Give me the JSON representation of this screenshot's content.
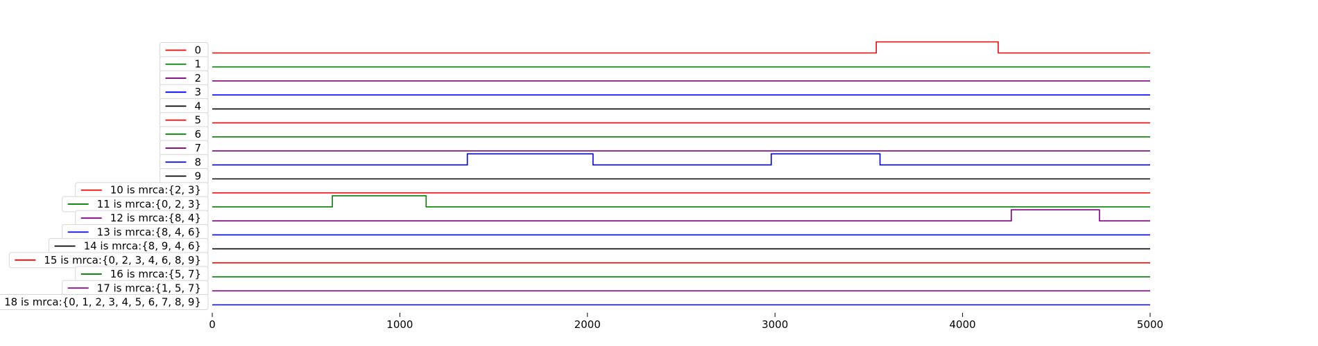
{
  "chart_data": {
    "type": "line",
    "x_ticks": [
      0,
      1000,
      2000,
      3000,
      4000,
      5000
    ],
    "xlim": [
      0,
      5000
    ],
    "grid": false,
    "legend_placement": "left of each track",
    "series": [
      {
        "name": "0",
        "color": "#ff0000",
        "steps": [
          [
            0,
            0
          ],
          [
            3540,
            1
          ],
          [
            4190,
            0
          ]
        ]
      },
      {
        "name": "1",
        "color": "#008000",
        "steps": [
          [
            0,
            0
          ]
        ]
      },
      {
        "name": "2",
        "color": "#800080",
        "steps": [
          [
            0,
            0
          ]
        ]
      },
      {
        "name": "3",
        "color": "#0000ff",
        "steps": [
          [
            0,
            0
          ]
        ]
      },
      {
        "name": "4",
        "color": "#000000",
        "steps": [
          [
            0,
            0
          ]
        ]
      },
      {
        "name": "5",
        "color": "#ff0000",
        "steps": [
          [
            0,
            0
          ]
        ]
      },
      {
        "name": "6",
        "color": "#008000",
        "steps": [
          [
            0,
            0
          ]
        ]
      },
      {
        "name": "7",
        "color": "#800080",
        "steps": [
          [
            0,
            0
          ]
        ]
      },
      {
        "name": "8",
        "color": "#0000ff",
        "steps": [
          [
            0,
            0
          ],
          [
            1360,
            1
          ],
          [
            2030,
            0
          ],
          [
            2980,
            1
          ],
          [
            3560,
            0
          ]
        ]
      },
      {
        "name": "9",
        "color": "#000000",
        "steps": [
          [
            0,
            0
          ]
        ]
      },
      {
        "name": "10 is mrca:{2, 3}",
        "color": "#ff0000",
        "steps": [
          [
            0,
            0
          ]
        ]
      },
      {
        "name": "11 is mrca:{0, 2, 3}",
        "color": "#008000",
        "steps": [
          [
            0,
            0
          ],
          [
            640,
            1
          ],
          [
            1140,
            0
          ]
        ]
      },
      {
        "name": "12 is mrca:{8, 4}",
        "color": "#800080",
        "steps": [
          [
            0,
            0
          ],
          [
            4260,
            1
          ],
          [
            4730,
            0
          ]
        ]
      },
      {
        "name": "13 is mrca:{8, 4, 6}",
        "color": "#0000ff",
        "steps": [
          [
            0,
            0
          ]
        ]
      },
      {
        "name": "14 is mrca:{8, 9, 4, 6}",
        "color": "#000000",
        "steps": [
          [
            0,
            0
          ]
        ]
      },
      {
        "name": "15 is mrca:{0, 2, 3, 4, 6, 8, 9}",
        "color": "#ff0000",
        "steps": [
          [
            0,
            0
          ]
        ]
      },
      {
        "name": "16 is mrca:{5, 7}",
        "color": "#008000",
        "steps": [
          [
            0,
            0
          ]
        ]
      },
      {
        "name": "17 is mrca:{1, 5, 7}",
        "color": "#800080",
        "steps": [
          [
            0,
            0
          ]
        ]
      },
      {
        "name": "18 is mrca:{0, 1, 2, 3, 4, 5, 6, 7, 8, 9}",
        "color": "#0000ff",
        "steps": [
          [
            0,
            0
          ]
        ]
      }
    ]
  }
}
